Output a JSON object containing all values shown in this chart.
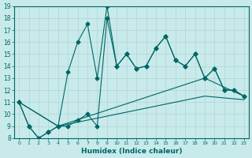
{
  "xlabel": "Humidex (Indice chaleur)",
  "background_color": "#c8eaea",
  "grid_color": "#b0d4d4",
  "line_color": "#006666",
  "xlim": [
    -0.5,
    23.5
  ],
  "ylim": [
    8,
    19
  ],
  "xticks": [
    0,
    1,
    2,
    3,
    4,
    5,
    6,
    7,
    8,
    9,
    10,
    11,
    12,
    13,
    14,
    15,
    16,
    17,
    18,
    19,
    20,
    21,
    22,
    23
  ],
  "yticks": [
    8,
    9,
    10,
    11,
    12,
    13,
    14,
    15,
    16,
    17,
    18,
    19
  ],
  "series_marked1": {
    "x": [
      0,
      1,
      2,
      3,
      4,
      5,
      6,
      7,
      8,
      9,
      10,
      11,
      12,
      13,
      14,
      15,
      16,
      17,
      18,
      19,
      20,
      21,
      22,
      23
    ],
    "y": [
      11,
      9,
      8,
      8.5,
      9,
      13.5,
      16,
      17.5,
      13,
      19,
      14,
      15,
      13.8,
      14,
      15.5,
      16.5,
      14.5,
      14,
      15,
      13,
      13.8,
      12,
      12,
      11.5
    ]
  },
  "series_marked2": {
    "x": [
      0,
      1,
      2,
      3,
      4,
      5,
      6,
      7,
      8,
      9,
      10,
      11,
      12,
      13,
      14,
      15,
      16,
      17,
      18,
      19,
      20,
      21,
      22,
      23
    ],
    "y": [
      11,
      9,
      8,
      8.5,
      9,
      9,
      9.5,
      10,
      9,
      18,
      14,
      15,
      13.8,
      14,
      15.5,
      16.5,
      14.5,
      14,
      15,
      13,
      13.8,
      12,
      12,
      11.5
    ]
  },
  "series_smooth1": {
    "x": [
      0,
      4,
      19,
      23
    ],
    "y": [
      11,
      9,
      13,
      11.5
    ]
  },
  "series_smooth2": {
    "x": [
      0,
      4,
      19,
      23
    ],
    "y": [
      11,
      9,
      11.5,
      11.2
    ]
  }
}
